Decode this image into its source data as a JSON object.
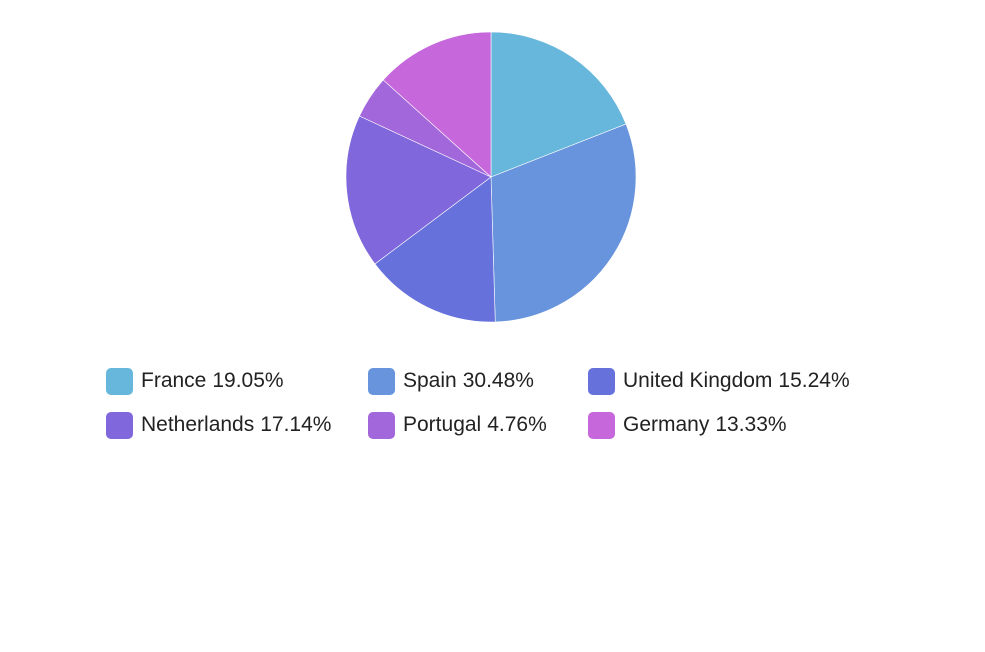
{
  "chart_data": {
    "type": "pie",
    "title": "",
    "categories": [
      "France",
      "Spain",
      "United Kingdom",
      "Netherlands",
      "Portugal",
      "Germany"
    ],
    "values": [
      19.05,
      30.48,
      15.24,
      17.14,
      4.76,
      13.33
    ],
    "value_labels": [
      "19.05%",
      "30.48%",
      "15.24%",
      "17.14%",
      "4.76%",
      "13.33%"
    ],
    "colors": [
      "#67b7dc",
      "#6794dc",
      "#6771dc",
      "#8067dc",
      "#a367dc",
      "#c767dc"
    ],
    "legend_position": "bottom",
    "start_angle_deg": -90,
    "direction": "clockwise"
  }
}
